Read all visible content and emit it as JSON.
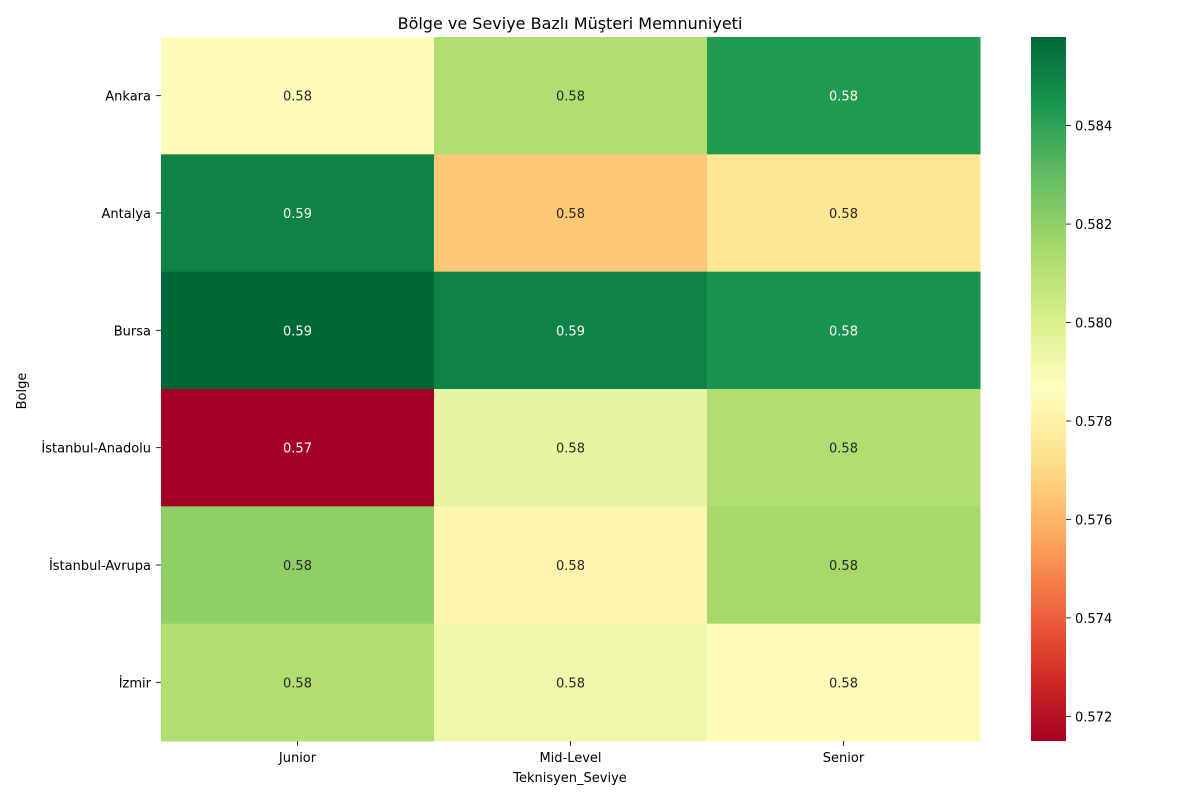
{
  "chart_data": {
    "type": "heatmap",
    "title": "Bölge ve Seviye Bazlı Müşteri Memnuniyeti",
    "xlabel": "Teknisyen_Seviye",
    "ylabel": "Bolge",
    "x_categories": [
      "Junior",
      "Mid-Level",
      "Senior"
    ],
    "y_categories": [
      "Ankara",
      "Antalya",
      "Bursa",
      "İstanbul-Anadolu",
      "İstanbul-Avrupa",
      "İzmir"
    ],
    "values": [
      [
        0.5785,
        0.5812,
        0.5843
      ],
      [
        0.585,
        0.5765,
        0.5775
      ],
      [
        0.5858,
        0.585,
        0.5845
      ],
      [
        0.5715,
        0.5795,
        0.5812
      ],
      [
        0.582,
        0.5782,
        0.5815
      ],
      [
        0.5812,
        0.5792,
        0.5785
      ]
    ],
    "annotations": [
      [
        "0.58",
        "0.58",
        "0.58"
      ],
      [
        "0.59",
        "0.58",
        "0.58"
      ],
      [
        "0.59",
        "0.59",
        "0.58"
      ],
      [
        "0.57",
        "0.58",
        "0.58"
      ],
      [
        "0.58",
        "0.58",
        "0.58"
      ],
      [
        "0.58",
        "0.58",
        "0.58"
      ]
    ],
    "colorscale": "RdYlGn",
    "colorbar": {
      "range": [
        0.5715,
        0.5858
      ],
      "ticks": [
        0.572,
        0.574,
        0.576,
        0.578,
        0.58,
        0.582,
        0.584
      ],
      "tick_labels": [
        "0.572",
        "0.574",
        "0.576",
        "0.578",
        "0.580",
        "0.582",
        "0.584"
      ]
    },
    "grid": false,
    "legend": "colorbar-right"
  }
}
